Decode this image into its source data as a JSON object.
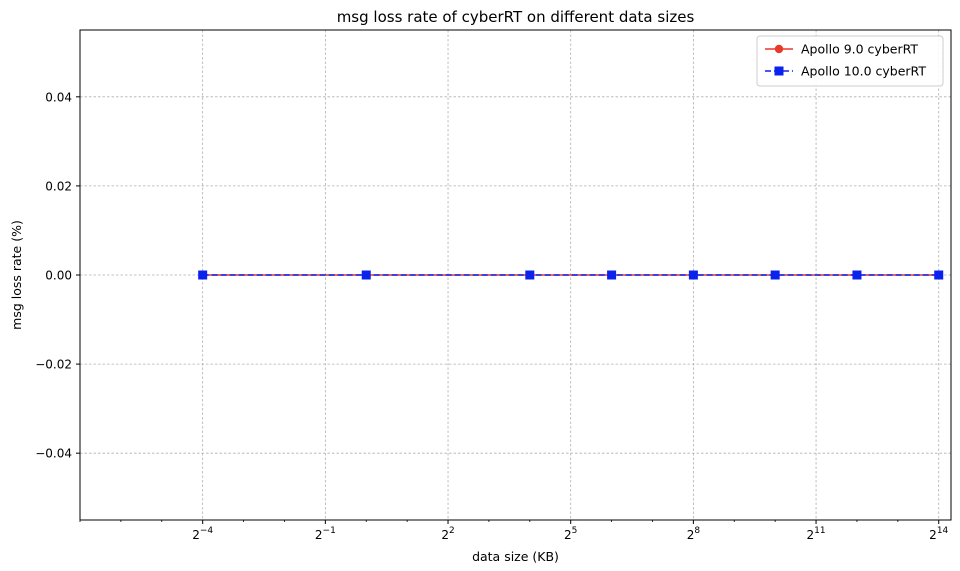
{
  "chart_data": {
    "type": "line",
    "title": "msg loss rate of cyberRT on different data sizes",
    "xlabel": "data size (KB)",
    "ylabel": "msg loss rate (%)",
    "x_scale": "log2",
    "x_tick_exponents": [
      -4,
      -1,
      2,
      5,
      8,
      11,
      14
    ],
    "xlim_log2": [
      -7.0,
      14.3
    ],
    "y_ticks": [
      -0.04,
      -0.02,
      0.0,
      0.02,
      0.04
    ],
    "y_tick_labels": [
      "−0.04",
      "−0.02",
      "0.00",
      "0.02",
      "0.04"
    ],
    "ylim": [
      -0.055,
      0.055
    ],
    "grid": true,
    "legend_position": "top-right",
    "x": [
      0.0625,
      1,
      16,
      64,
      256,
      1024,
      4096,
      16384
    ],
    "series": [
      {
        "name": "Apollo 9.0 cyberRT",
        "color": "#e8392b",
        "marker": "circle",
        "linestyle": "solid",
        "values": [
          0,
          0,
          0,
          0,
          0,
          0,
          0,
          0
        ]
      },
      {
        "name": "Apollo 10.0 cyberRT",
        "color": "#0a22ee",
        "marker": "square",
        "linestyle": "dashed",
        "values": [
          0,
          0,
          0,
          0,
          0,
          0,
          0,
          0
        ]
      }
    ]
  }
}
